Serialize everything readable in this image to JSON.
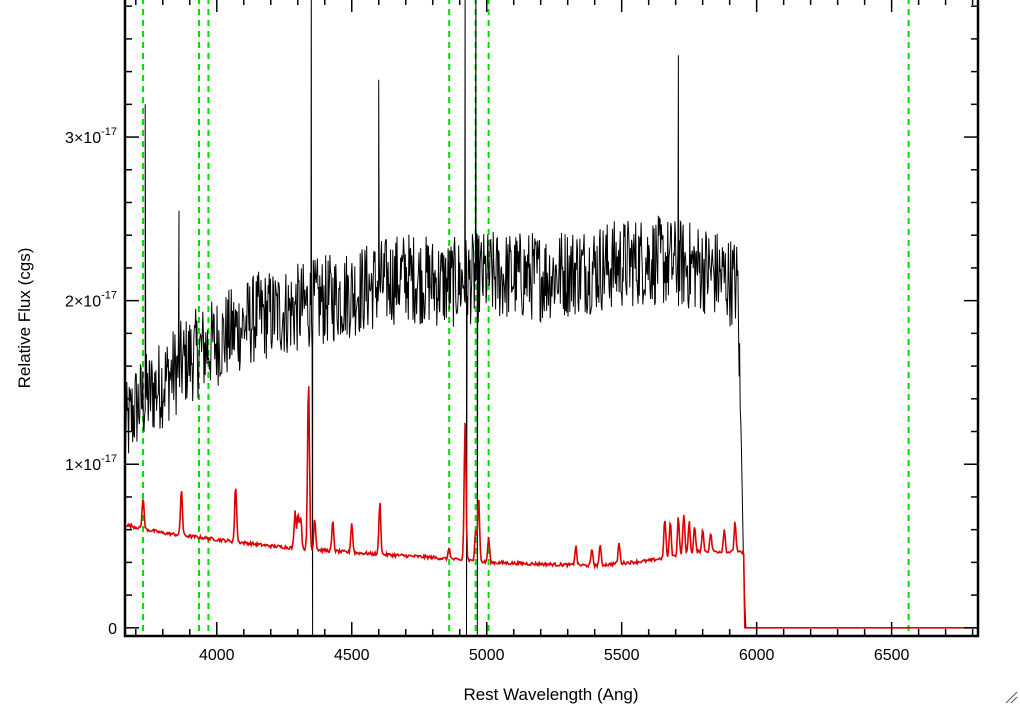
{
  "chart_data": {
    "type": "line",
    "title": "",
    "xlabel": "Rest Wavelength (Ang)",
    "ylabel": "Relative Flux (cgs)",
    "xlim": [
      3660,
      6820
    ],
    "ylim": [
      -5e-19,
      3.85e-17
    ],
    "x_ticks": [
      4000,
      4500,
      5000,
      5500,
      6000,
      6500
    ],
    "x_tick_labels": [
      "4000",
      "4500",
      "5000",
      "5500",
      "6000",
      "6500"
    ],
    "y_ticks": [
      0,
      1e-17,
      2e-17,
      3e-17
    ],
    "y_tick_labels": [
      {
        "mantissa": "0",
        "exponent": ""
      },
      {
        "mantissa": "1×10",
        "exponent": "-17"
      },
      {
        "mantissa": "2×10",
        "exponent": "-17"
      },
      {
        "mantissa": "3×10",
        "exponent": "-17"
      }
    ],
    "grid": false,
    "series": [
      {
        "color": "#000000",
        "description": "observed spectrum",
        "continuum": [
          [
            3660,
            1.2e-17
          ],
          [
            3700,
            1.35e-17
          ],
          [
            3800,
            1.5e-17
          ],
          [
            3900,
            1.65e-17
          ],
          [
            4000,
            1.75e-17
          ],
          [
            4150,
            1.9e-17
          ],
          [
            4300,
            1.95e-17
          ],
          [
            4500,
            2.05e-17
          ],
          [
            4700,
            2.15e-17
          ],
          [
            4850,
            2.1e-17
          ],
          [
            5000,
            2.15e-17
          ],
          [
            5200,
            2.15e-17
          ],
          [
            5400,
            2.2e-17
          ],
          [
            5600,
            2.25e-17
          ],
          [
            5800,
            2.2e-17
          ],
          [
            5930,
            2.1e-17
          ],
          [
            5950,
            5e-18
          ],
          [
            5960,
            0
          ]
        ],
        "noise_amplitude": 2.8e-18,
        "spikes": [
          [
            3735,
            3.2e-17
          ],
          [
            3860,
            2.55e-17
          ],
          [
            4350,
            3.95e-17
          ],
          [
            4355,
            -5e-19
          ],
          [
            4600,
            3.35e-17
          ],
          [
            4920,
            3.9e-17
          ],
          [
            4925,
            -5e-19
          ],
          [
            4960,
            3.9e-17
          ],
          [
            4965,
            -5e-19
          ],
          [
            5710,
            3.5e-17
          ]
        ],
        "end": 5960
      },
      {
        "color": "#dd0000",
        "description": "model spectrum",
        "continuum": [
          [
            3660,
            6.3e-18
          ],
          [
            3800,
            5.8e-18
          ],
          [
            4000,
            5.4e-18
          ],
          [
            4200,
            5e-18
          ],
          [
            4500,
            4.6e-18
          ],
          [
            4800,
            4.3e-18
          ],
          [
            5000,
            4e-18
          ],
          [
            5200,
            3.9e-18
          ],
          [
            5400,
            3.8e-18
          ],
          [
            5600,
            4.1e-18
          ],
          [
            5800,
            4.7e-18
          ],
          [
            5950,
            4.6e-18
          ],
          [
            5955,
            0
          ],
          [
            6820,
            0
          ]
        ],
        "lines": [
          [
            3727,
            8e-18
          ],
          [
            3869,
            8.5e-18
          ],
          [
            4070,
            8.7e-18
          ],
          [
            4290,
            7.1e-18
          ],
          [
            4301,
            7e-18
          ],
          [
            4311,
            6.8e-18
          ],
          [
            4340,
            1.52e-17
          ],
          [
            4363,
            6.7e-18
          ],
          [
            4430,
            6.5e-18
          ],
          [
            4500,
            6.4e-18
          ],
          [
            4604,
            7.7e-18
          ],
          [
            4861,
            4.9e-18
          ],
          [
            4920,
            1.25e-17
          ],
          [
            4959,
            6e-18
          ],
          [
            4970,
            8e-18
          ],
          [
            5007,
            5.5e-18
          ],
          [
            5330,
            5e-18
          ],
          [
            5390,
            4.8e-18
          ],
          [
            5420,
            5e-18
          ],
          [
            5490,
            5.2e-18
          ],
          [
            5660,
            6.7e-18
          ],
          [
            5680,
            6.5e-18
          ],
          [
            5710,
            6.8e-18
          ],
          [
            5730,
            7e-18
          ],
          [
            5750,
            6.5e-18
          ],
          [
            5770,
            6.2e-18
          ],
          [
            5800,
            6e-18
          ],
          [
            5830,
            5.8e-18
          ],
          [
            5880,
            6e-18
          ],
          [
            5920,
            6.5e-18
          ]
        ]
      }
    ],
    "reference_lines": {
      "color": "#00dd00",
      "style": "dashed",
      "x": [
        3727,
        3934,
        3969,
        4861,
        4959,
        5007,
        6563
      ]
    }
  }
}
